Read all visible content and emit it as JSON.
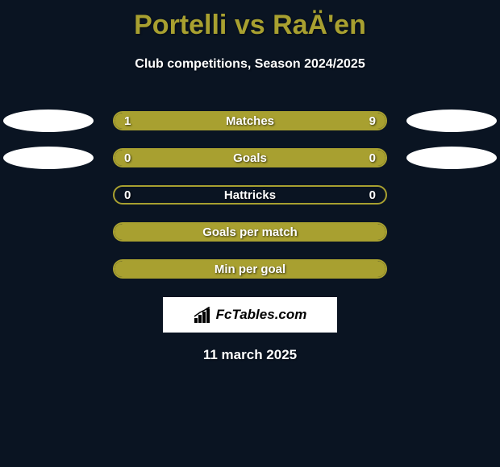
{
  "title": "Portelli vs RaÄ'en",
  "subtitle": "Club competitions, Season 2024/2025",
  "stats": [
    {
      "label": "Matches",
      "left_value": "1",
      "right_value": "9",
      "left_fill_pct": 18,
      "right_fill_pct": 82,
      "show_ellipses": true
    },
    {
      "label": "Goals",
      "left_value": "0",
      "right_value": "0",
      "left_fill_pct": 0,
      "right_fill_pct": 0,
      "full_fill": true,
      "show_ellipses": true
    },
    {
      "label": "Hattricks",
      "left_value": "0",
      "right_value": "0",
      "left_fill_pct": 0,
      "right_fill_pct": 0,
      "full_fill": false,
      "show_ellipses": false
    },
    {
      "label": "Goals per match",
      "left_value": "",
      "right_value": "",
      "left_fill_pct": 0,
      "right_fill_pct": 0,
      "full_fill": true,
      "show_ellipses": false
    },
    {
      "label": "Min per goal",
      "left_value": "",
      "right_value": "",
      "left_fill_pct": 0,
      "right_fill_pct": 0,
      "full_fill": true,
      "show_ellipses": false
    }
  ],
  "logo_text": "FcTables.com",
  "date": "11 march 2025",
  "colors": {
    "background": "#0a1422",
    "accent": "#a8a030",
    "text": "#ffffff",
    "ellipse": "#ffffff"
  }
}
